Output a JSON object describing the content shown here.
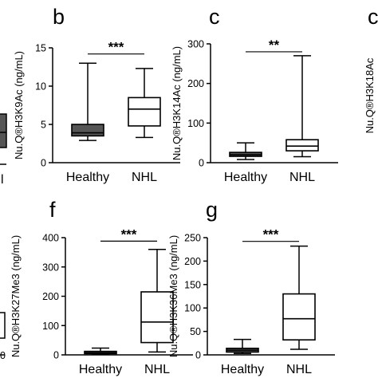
{
  "figure": {
    "background": "#ffffff",
    "dark_box_fill": "#555555",
    "line_color": "#000000"
  },
  "chart_data": [
    {
      "panel": "b",
      "type": "box",
      "ylabel": "Nu.Q®H3K9Ac (ng/mL)",
      "ylim": [
        0,
        15
      ],
      "yticks": [
        0,
        5,
        10,
        15
      ],
      "categories": [
        "Healthy",
        "NHL"
      ],
      "boxes": [
        {
          "category": "Healthy",
          "min": 2.9,
          "q1": 3.5,
          "median": 3.9,
          "q3": 5.0,
          "max": 13.0,
          "fill": "#555555"
        },
        {
          "category": "NHL",
          "min": 3.3,
          "q1": 4.8,
          "median": 7.0,
          "q3": 8.5,
          "max": 12.3,
          "fill": "#ffffff"
        }
      ],
      "significance": "***",
      "sig_y": 14.2
    },
    {
      "panel": "c",
      "type": "box",
      "ylabel": "Nu.Q®H3K14Ac (ng/mL)",
      "ylim": [
        0,
        300
      ],
      "yticks": [
        0,
        100,
        200,
        300
      ],
      "categories": [
        "Healthy",
        "NHL"
      ],
      "boxes": [
        {
          "category": "Healthy",
          "min": 8,
          "q1": 16,
          "median": 20,
          "q3": 26,
          "max": 50,
          "fill": "#555555"
        },
        {
          "category": "NHL",
          "min": 15,
          "q1": 30,
          "median": 42,
          "q3": 58,
          "max": 270,
          "fill": "#ffffff"
        }
      ],
      "significance": "**",
      "sig_y": 280
    },
    {
      "panel": "f",
      "type": "box",
      "ylabel": "Nu.Q®H3K27Me3 (ng/mL)",
      "ylim": [
        0,
        400
      ],
      "yticks": [
        0,
        100,
        200,
        300,
        400
      ],
      "categories": [
        "Healthy",
        "NHL"
      ],
      "boxes": [
        {
          "category": "Healthy",
          "min": 2,
          "q1": 4,
          "median": 7,
          "q3": 12,
          "max": 23,
          "fill": "#555555"
        },
        {
          "category": "NHL",
          "min": 10,
          "q1": 42,
          "median": 112,
          "q3": 215,
          "max": 360,
          "fill": "#ffffff"
        }
      ],
      "significance": "***",
      "sig_y": 388
    },
    {
      "panel": "g",
      "type": "box",
      "ylabel": "Nu.Q®H3K36Me3 (ng/mL)",
      "ylim": [
        0,
        250
      ],
      "yticks": [
        0,
        50,
        100,
        150,
        200,
        250
      ],
      "categories": [
        "Healthy",
        "NHL"
      ],
      "boxes": [
        {
          "category": "Healthy",
          "min": 3,
          "q1": 6,
          "median": 10,
          "q3": 14,
          "max": 33,
          "fill": "#555555"
        },
        {
          "category": "NHL",
          "min": 12,
          "q1": 32,
          "median": 77,
          "q3": 130,
          "max": 232,
          "fill": "#ffffff"
        }
      ],
      "significance": "***",
      "sig_y": 242
    }
  ],
  "edge_fragments": {
    "left_top_label": "l",
    "right_top_letter": "c",
    "right_top_ylabel": "Nu.Q®H3K18Ac",
    "left_bottom_tick": "0"
  }
}
